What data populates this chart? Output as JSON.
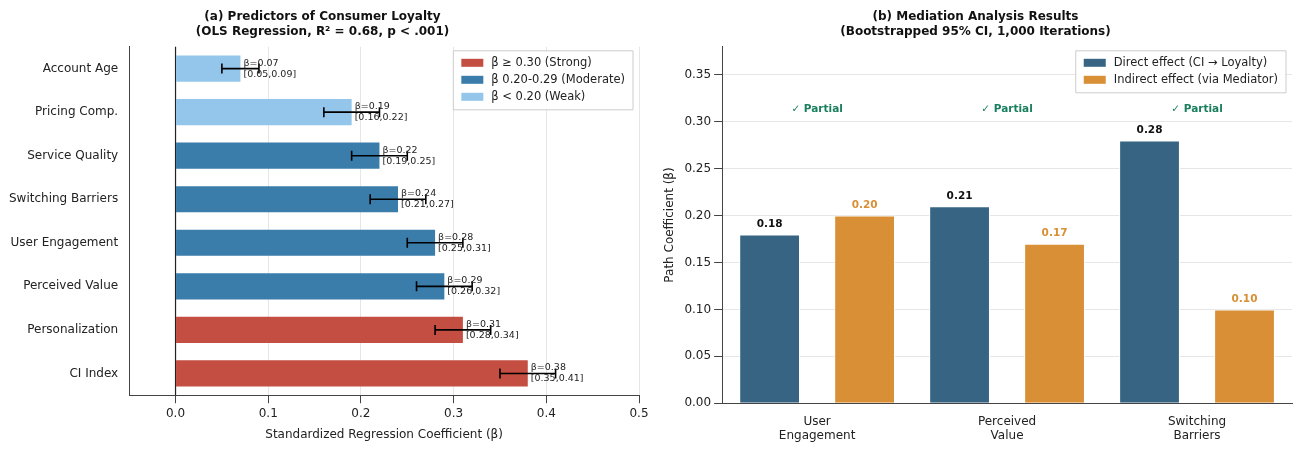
{
  "chart_data": [
    {
      "type": "bar",
      "orientation": "horizontal",
      "title": "(a) Predictors of Consumer Loyalty\n(OLS Regression, R² = 0.68, p < .001)",
      "xlabel": "Standardized Regression Coefficient (β)",
      "categories": [
        "Account Age",
        "Pricing Comp.",
        "Service Quality",
        "Switching Barriers",
        "User Engagement",
        "Perceived Value",
        "Personalization",
        "CI Index"
      ],
      "series": [
        {
          "name": "β ≥ 0.30 (Strong)",
          "color": "#c44e41",
          "values": [
            null,
            null,
            null,
            null,
            null,
            null,
            0.31,
            0.38
          ],
          "errors": [
            null,
            null,
            null,
            null,
            null,
            null,
            [
              0.28,
              0.34
            ],
            [
              0.35,
              0.41
            ]
          ],
          "value_labels": [
            null,
            null,
            null,
            null,
            null,
            null,
            "β=0.31\n[0.28,0.34]",
            "β=0.38\n[0.35,0.41]"
          ]
        },
        {
          "name": "β 0.20-0.29 (Moderate)",
          "color": "#3a7dab",
          "values": [
            null,
            null,
            0.22,
            0.24,
            0.28,
            0.29,
            null,
            null
          ],
          "errors": [
            null,
            null,
            [
              0.19,
              0.25
            ],
            [
              0.21,
              0.27
            ],
            [
              0.25,
              0.31
            ],
            [
              0.26,
              0.32
            ],
            null,
            null
          ],
          "value_labels": [
            null,
            null,
            "β=0.22\n[0.19,0.25]",
            "β=0.24\n[0.21,0.27]",
            "β=0.28\n[0.25,0.31]",
            "β=0.29\n[0.26,0.32]",
            null,
            null
          ]
        },
        {
          "name": "β < 0.20 (Weak)",
          "color": "#93c6ea",
          "values": [
            0.07,
            0.19,
            null,
            null,
            null,
            null,
            null,
            null
          ],
          "errors": [
            [
              0.05,
              0.09
            ],
            [
              0.16,
              0.22
            ],
            null,
            null,
            null,
            null,
            null,
            null
          ],
          "value_labels": [
            "β=0.07\n[0.05,0.09]",
            "β=0.19\n[0.16,0.22]",
            null,
            null,
            null,
            null,
            null,
            null
          ]
        }
      ],
      "xlim": [
        -0.05,
        0.5
      ],
      "xticks": [
        {
          "value": 0,
          "label": "0.0"
        },
        0.1,
        0.2,
        0.3,
        0.4,
        0.5
      ],
      "ref_lines": [
        {
          "axis": "x",
          "value": 0,
          "color": "#222222"
        }
      ],
      "grid": "x",
      "legend": "top right"
    },
    {
      "type": "bar",
      "title": "(b) Mediation Analysis Results\n(Bootstrapped 95% CI, 1,000 Iterations)",
      "ylabel": "Path Coefficient (β)",
      "categories": [
        "User\nEngagement",
        "Perceived\nValue",
        "Switching\nBarriers"
      ],
      "series": [
        {
          "name": "Direct effect (CI → Loyalty)",
          "color": "#366482",
          "values": [
            0.18,
            0.21,
            0.28
          ],
          "value_labels": [
            "0.18",
            "0.21",
            "0.28"
          ]
        },
        {
          "name": "Indirect effect (via Mediator)",
          "color": "#d98f35",
          "values": [
            0.2,
            0.17,
            0.1
          ],
          "value_labels": [
            "0.20",
            "0.17",
            "0.10"
          ]
        }
      ],
      "ylim": [
        0,
        0.38
      ],
      "yticks": [
        {
          "value": 0,
          "label": "0.00"
        },
        {
          "value": 0.05,
          "label": "0.05"
        },
        {
          "value": 0.1,
          "label": "0.10"
        },
        {
          "value": 0.15,
          "label": "0.15"
        },
        {
          "value": 0.2,
          "label": "0.20"
        },
        {
          "value": 0.25,
          "label": "0.25"
        },
        {
          "value": 0.3,
          "label": "0.30"
        },
        {
          "value": 0.35,
          "label": "0.35"
        }
      ],
      "annotations": [
        "✓ Partial",
        "✓ Partial",
        "✓ Partial"
      ],
      "grid": "y",
      "legend": "top right"
    }
  ]
}
